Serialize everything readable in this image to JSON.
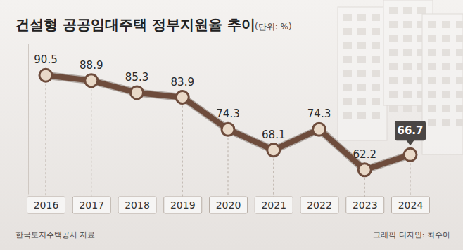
{
  "chart_data": {
    "type": "line",
    "title": "건설형 공공임대주택 정부지원율 추이",
    "subtitle": "(단위: %)",
    "categories": [
      "2016",
      "2017",
      "2018",
      "2019",
      "2020",
      "2021",
      "2022",
      "2023",
      "2024"
    ],
    "values": [
      90.5,
      88.9,
      85.3,
      83.9,
      74.3,
      68.1,
      74.3,
      62.2,
      66.7
    ],
    "color": "#6e4c3c",
    "ylim": [
      55,
      100
    ],
    "data_labels": true,
    "tick_labels": "x",
    "marker": "circle",
    "source": "한국토지주택공사 자료",
    "credit": "그래픽 디자인: 최수아"
  }
}
